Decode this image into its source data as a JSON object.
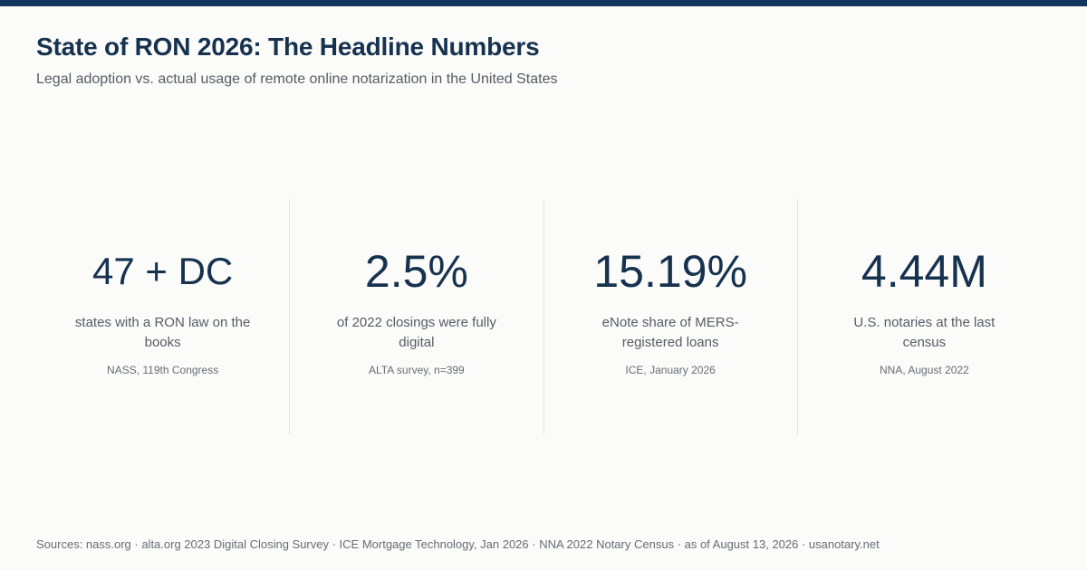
{
  "header": {
    "title": "State of RON 2026: The Headline Numbers",
    "subtitle": "Legal adoption vs. actual usage of remote online notarization in the United States"
  },
  "stats": [
    {
      "value": "47 + DC",
      "label": "states with a RON law on the books",
      "source": "NASS, 119th Congress"
    },
    {
      "value": "2.5%",
      "label": "of 2022 closings were fully digital",
      "source": "ALTA survey, n=399"
    },
    {
      "value": "15.19%",
      "label": "eNote share of MERS-registered loans",
      "source": "ICE, January 2026"
    },
    {
      "value": "4.44M",
      "label": "U.S. notaries at the last census",
      "source": "NNA, August 2022"
    }
  ],
  "footer": {
    "sources": "Sources: nass.org · alta.org 2023 Digital Closing Survey · ICE Mortgage Technology, Jan 2026 · NNA 2022 Notary Census · as of August 13, 2026 · usanotary.net"
  },
  "colors": {
    "accent": "#12355f",
    "text_primary": "#16324f",
    "text_secondary": "#555d66",
    "background": "#fbfbf9"
  }
}
